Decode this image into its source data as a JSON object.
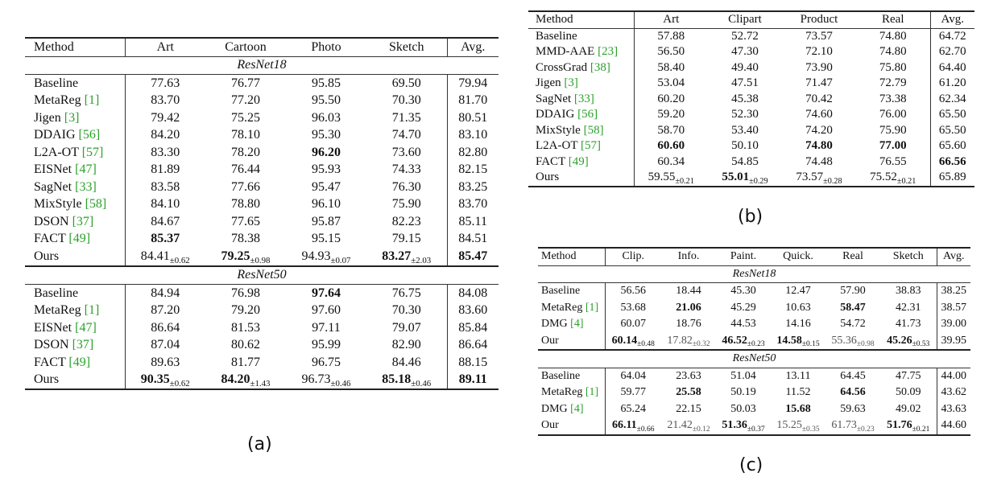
{
  "panel_a": {
    "caption": "(a)",
    "header": [
      "Method",
      "Art",
      "Cartoon",
      "Photo",
      "Sketch",
      "Avg."
    ],
    "sections": [
      {
        "title": "ResNet18",
        "rows": [
          {
            "method": "Baseline",
            "cite": "",
            "vals": [
              {
                "v": "77.63"
              },
              {
                "v": "76.77"
              },
              {
                "v": "95.85"
              },
              {
                "v": "69.50"
              },
              {
                "v": "79.94"
              }
            ]
          },
          {
            "method": "MetaReg",
            "cite": "[1]",
            "vals": [
              {
                "v": "83.70"
              },
              {
                "v": "77.20"
              },
              {
                "v": "95.50"
              },
              {
                "v": "70.30"
              },
              {
                "v": "81.70"
              }
            ]
          },
          {
            "method": "Jigen",
            "cite": "[3]",
            "vals": [
              {
                "v": "79.42"
              },
              {
                "v": "75.25"
              },
              {
                "v": "96.03"
              },
              {
                "v": "71.35"
              },
              {
                "v": "80.51"
              }
            ]
          },
          {
            "method": "DDAIG",
            "cite": "[56]",
            "vals": [
              {
                "v": "84.20"
              },
              {
                "v": "78.10"
              },
              {
                "v": "95.30"
              },
              {
                "v": "74.70"
              },
              {
                "v": "83.10"
              }
            ]
          },
          {
            "method": "L2A-OT",
            "cite": "[57]",
            "vals": [
              {
                "v": "83.30"
              },
              {
                "v": "78.20"
              },
              {
                "v": "96.20",
                "b": true
              },
              {
                "v": "73.60"
              },
              {
                "v": "82.80"
              }
            ]
          },
          {
            "method": "EISNet",
            "cite": "[47]",
            "vals": [
              {
                "v": "81.89"
              },
              {
                "v": "76.44"
              },
              {
                "v": "95.93"
              },
              {
                "v": "74.33"
              },
              {
                "v": "82.15"
              }
            ]
          },
          {
            "method": "SagNet",
            "cite": "[33]",
            "vals": [
              {
                "v": "83.58"
              },
              {
                "v": "77.66"
              },
              {
                "v": "95.47"
              },
              {
                "v": "76.30"
              },
              {
                "v": "83.25"
              }
            ]
          },
          {
            "method": "MixStyle",
            "cite": "[58]",
            "vals": [
              {
                "v": "84.10"
              },
              {
                "v": "78.80"
              },
              {
                "v": "96.10"
              },
              {
                "v": "75.90"
              },
              {
                "v": "83.70"
              }
            ]
          },
          {
            "method": "DSON",
            "cite": "[37]",
            "vals": [
              {
                "v": "84.67"
              },
              {
                "v": "77.65"
              },
              {
                "v": "95.87"
              },
              {
                "v": "82.23"
              },
              {
                "v": "85.11"
              }
            ]
          },
          {
            "method": "FACT",
            "cite": "[49]",
            "vals": [
              {
                "v": "85.37",
                "b": true
              },
              {
                "v": "78.38"
              },
              {
                "v": "95.15"
              },
              {
                "v": "79.15"
              },
              {
                "v": "84.51"
              }
            ]
          },
          {
            "method": "Ours",
            "cite": "",
            "vals": [
              {
                "v": "84.41",
                "pm": "±0.62"
              },
              {
                "v": "79.25",
                "pm": "±0.98",
                "b": true
              },
              {
                "v": "94.93",
                "pm": "±0.07"
              },
              {
                "v": "83.27",
                "pm": "±2.03",
                "b": true
              },
              {
                "v": "85.47",
                "b": true
              }
            ]
          }
        ]
      },
      {
        "title": "ResNet50",
        "rows": [
          {
            "method": "Baseline",
            "cite": "",
            "vals": [
              {
                "v": "84.94"
              },
              {
                "v": "76.98"
              },
              {
                "v": "97.64",
                "b": true
              },
              {
                "v": "76.75"
              },
              {
                "v": "84.08"
              }
            ]
          },
          {
            "method": "MetaReg",
            "cite": "[1]",
            "vals": [
              {
                "v": "87.20"
              },
              {
                "v": "79.20"
              },
              {
                "v": "97.60"
              },
              {
                "v": "70.30"
              },
              {
                "v": "83.60"
              }
            ]
          },
          {
            "method": "EISNet",
            "cite": "[47]",
            "vals": [
              {
                "v": "86.64"
              },
              {
                "v": "81.53"
              },
              {
                "v": "97.11"
              },
              {
                "v": "79.07"
              },
              {
                "v": "85.84"
              }
            ]
          },
          {
            "method": "DSON",
            "cite": "[37]",
            "vals": [
              {
                "v": "87.04"
              },
              {
                "v": "80.62"
              },
              {
                "v": "95.99"
              },
              {
                "v": "82.90"
              },
              {
                "v": "86.64"
              }
            ]
          },
          {
            "method": "FACT",
            "cite": "[49]",
            "vals": [
              {
                "v": "89.63"
              },
              {
                "v": "81.77"
              },
              {
                "v": "96.75"
              },
              {
                "v": "84.46"
              },
              {
                "v": "88.15"
              }
            ]
          },
          {
            "method": "Ours",
            "cite": "",
            "vals": [
              {
                "v": "90.35",
                "pm": "±0.62",
                "b": true
              },
              {
                "v": "84.20",
                "pm": "±1.43",
                "b": true
              },
              {
                "v": "96.73",
                "pm": "±0.46"
              },
              {
                "v": "85.18",
                "pm": "±0.46",
                "b": true
              },
              {
                "v": "89.11",
                "b": true
              }
            ]
          }
        ]
      }
    ]
  },
  "panel_b": {
    "caption": "(b)",
    "header": [
      "Method",
      "Art",
      "Clipart",
      "Product",
      "Real",
      "Avg."
    ],
    "sections": [
      {
        "title": "",
        "rows": [
          {
            "method": "Baseline",
            "cite": "",
            "vals": [
              {
                "v": "57.88"
              },
              {
                "v": "52.72"
              },
              {
                "v": "73.57"
              },
              {
                "v": "74.80"
              },
              {
                "v": "64.72"
              }
            ]
          },
          {
            "method": "MMD-AAE",
            "cite": "[23]",
            "vals": [
              {
                "v": "56.50"
              },
              {
                "v": "47.30"
              },
              {
                "v": "72.10"
              },
              {
                "v": "74.80"
              },
              {
                "v": "62.70"
              }
            ]
          },
          {
            "method": "CrossGrad",
            "cite": "[38]",
            "vals": [
              {
                "v": "58.40"
              },
              {
                "v": "49.40"
              },
              {
                "v": "73.90"
              },
              {
                "v": "75.80"
              },
              {
                "v": "64.40"
              }
            ]
          },
          {
            "method": "Jigen",
            "cite": "[3]",
            "vals": [
              {
                "v": "53.04"
              },
              {
                "v": "47.51"
              },
              {
                "v": "71.47"
              },
              {
                "v": "72.79"
              },
              {
                "v": "61.20"
              }
            ]
          },
          {
            "method": "SagNet",
            "cite": "[33]",
            "vals": [
              {
                "v": "60.20"
              },
              {
                "v": "45.38"
              },
              {
                "v": "70.42"
              },
              {
                "v": "73.38"
              },
              {
                "v": "62.34"
              }
            ]
          },
          {
            "method": "DDAIG",
            "cite": "[56]",
            "vals": [
              {
                "v": "59.20"
              },
              {
                "v": "52.30"
              },
              {
                "v": "74.60"
              },
              {
                "v": "76.00"
              },
              {
                "v": "65.50"
              }
            ]
          },
          {
            "method": "MixStyle",
            "cite": "[58]",
            "vals": [
              {
                "v": "58.70"
              },
              {
                "v": "53.40"
              },
              {
                "v": "74.20"
              },
              {
                "v": "75.90"
              },
              {
                "v": "65.50"
              }
            ]
          },
          {
            "method": "L2A-OT",
            "cite": "[57]",
            "vals": [
              {
                "v": "60.60",
                "b": true
              },
              {
                "v": "50.10"
              },
              {
                "v": "74.80",
                "b": true
              },
              {
                "v": "77.00",
                "b": true
              },
              {
                "v": "65.60"
              }
            ]
          },
          {
            "method": "FACT",
            "cite": "[49]",
            "vals": [
              {
                "v": "60.34"
              },
              {
                "v": "54.85"
              },
              {
                "v": "74.48"
              },
              {
                "v": "76.55"
              },
              {
                "v": "66.56",
                "b": true
              }
            ]
          },
          {
            "method": "Ours",
            "cite": "",
            "vals": [
              {
                "v": "59.55",
                "pm": "±0.21"
              },
              {
                "v": "55.01",
                "pm": "±0.29",
                "b": true
              },
              {
                "v": "73.57",
                "pm": "±0.28"
              },
              {
                "v": "75.52",
                "pm": "±0.21"
              },
              {
                "v": "65.89"
              }
            ]
          }
        ]
      }
    ]
  },
  "panel_c": {
    "caption": "(c)",
    "header": [
      "Method",
      "Clip.",
      "Info.",
      "Paint.",
      "Quick.",
      "Real",
      "Sketch",
      "Avg."
    ],
    "sections": [
      {
        "title": "ResNet18",
        "rows": [
          {
            "method": "Baseline",
            "cite": "",
            "vals": [
              {
                "v": "56.56"
              },
              {
                "v": "18.44"
              },
              {
                "v": "45.30"
              },
              {
                "v": "12.47"
              },
              {
                "v": "57.90"
              },
              {
                "v": "38.83"
              },
              {
                "v": "38.25"
              }
            ]
          },
          {
            "method": "MetaReg",
            "cite": "[1]",
            "vals": [
              {
                "v": "53.68"
              },
              {
                "v": "21.06",
                "b": true
              },
              {
                "v": "45.29"
              },
              {
                "v": "10.63"
              },
              {
                "v": "58.47",
                "b": true
              },
              {
                "v": "42.31"
              },
              {
                "v": "38.57"
              }
            ]
          },
          {
            "method": "DMG",
            "cite": "[4]",
            "vals": [
              {
                "v": "60.07"
              },
              {
                "v": "18.76"
              },
              {
                "v": "44.53"
              },
              {
                "v": "14.16"
              },
              {
                "v": "54.72"
              },
              {
                "v": "41.73"
              },
              {
                "v": "39.00"
              }
            ]
          },
          {
            "method": "Our",
            "cite": "",
            "vals": [
              {
                "v": "60.14",
                "pm": "±0.48",
                "b": true
              },
              {
                "v": "17.82",
                "pm": "±0.32",
                "g": true
              },
              {
                "v": "46.52",
                "pm": "±0.23",
                "b": true
              },
              {
                "v": "14.58",
                "pm": "±0.15",
                "b": true
              },
              {
                "v": "55.36",
                "pm": "±0.98",
                "g": true
              },
              {
                "v": "45.26",
                "pm": "±0.53",
                "b": true
              },
              {
                "v": "39.95"
              }
            ]
          }
        ]
      },
      {
        "title": "ResNet50",
        "rows": [
          {
            "method": "Baseline",
            "cite": "",
            "vals": [
              {
                "v": "64.04"
              },
              {
                "v": "23.63"
              },
              {
                "v": "51.04"
              },
              {
                "v": "13.11"
              },
              {
                "v": "64.45"
              },
              {
                "v": "47.75"
              },
              {
                "v": "44.00"
              }
            ]
          },
          {
            "method": "MetaReg",
            "cite": "[1]",
            "vals": [
              {
                "v": "59.77"
              },
              {
                "v": "25.58",
                "b": true
              },
              {
                "v": "50.19"
              },
              {
                "v": "11.52"
              },
              {
                "v": "64.56",
                "b": true
              },
              {
                "v": "50.09"
              },
              {
                "v": "43.62"
              }
            ]
          },
          {
            "method": "DMG",
            "cite": "[4]",
            "vals": [
              {
                "v": "65.24"
              },
              {
                "v": "22.15"
              },
              {
                "v": "50.03"
              },
              {
                "v": "15.68",
                "b": true
              },
              {
                "v": "59.63"
              },
              {
                "v": "49.02"
              },
              {
                "v": "43.63"
              }
            ]
          },
          {
            "method": "Our",
            "cite": "",
            "vals": [
              {
                "v": "66.11",
                "pm": "±0.66",
                "b": true
              },
              {
                "v": "21.42",
                "pm": "±0.12",
                "g": true
              },
              {
                "v": "51.36",
                "pm": "±0.37",
                "b": true
              },
              {
                "v": "15.25",
                "pm": "±0.35",
                "g": true
              },
              {
                "v": "61.73",
                "pm": "±0.23",
                "g": true
              },
              {
                "v": "51.76",
                "pm": "±0.21",
                "b": true
              },
              {
                "v": "44.60"
              }
            ]
          }
        ]
      }
    ]
  }
}
